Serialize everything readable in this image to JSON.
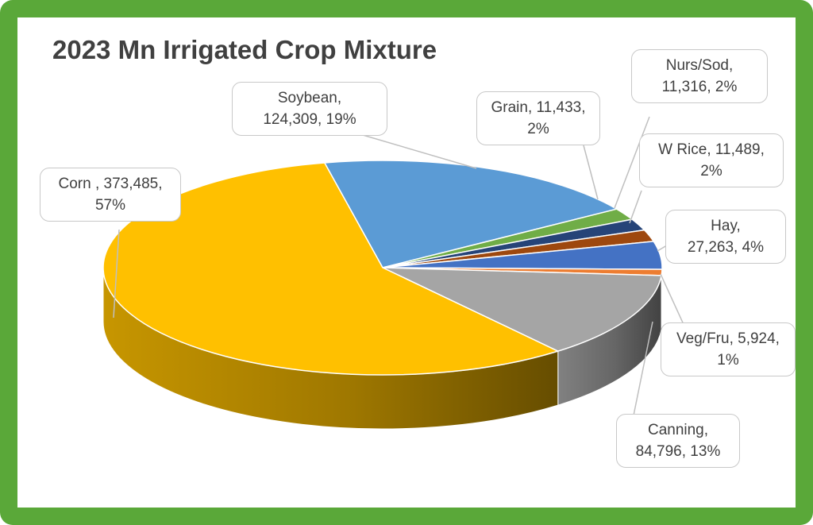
{
  "chart_data": {
    "type": "pie",
    "title": "2023 Mn Irrigated Crop Mixture",
    "slices": [
      {
        "name": "Soybean",
        "value": 124309,
        "percent": "19%",
        "color": "#5b9bd5",
        "label_line1": "Soybean,",
        "label_line2": "124,309, 19%"
      },
      {
        "name": "Grain",
        "value": 11433,
        "percent": "2%",
        "color": "#70ad47",
        "label_line1": "Grain, 11,433,",
        "label_line2": "2%"
      },
      {
        "name": "Nurs/Sod",
        "value": 11316,
        "percent": "2%",
        "color": "#264478",
        "label_line1": "Nurs/Sod,",
        "label_line2": "11,316, 2%"
      },
      {
        "name": "W Rice",
        "value": 11489,
        "percent": "2%",
        "color": "#9e480e",
        "label_line1": "W Rice, 11,489,",
        "label_line2": "2%"
      },
      {
        "name": "Hay",
        "value": 27263,
        "percent": "4%",
        "color": "#4472c4",
        "label_line1": "Hay,",
        "label_line2": "27,263, 4%"
      },
      {
        "name": "Veg/Fru",
        "value": 5924,
        "percent": "1%",
        "color": "#ed7d31",
        "label_line1": "Veg/Fru, 5,924,",
        "label_line2": "1%"
      },
      {
        "name": "Canning",
        "value": 84796,
        "percent": "13%",
        "color": "#a5a5a5",
        "label_line1": "Canning,",
        "label_line2": "84,796, 13%"
      },
      {
        "name": "Corn",
        "value": 373485,
        "percent": "57%",
        "color": "#ffc000",
        "label_line1": "Corn , 373,485,",
        "label_line2": "57%"
      }
    ]
  }
}
